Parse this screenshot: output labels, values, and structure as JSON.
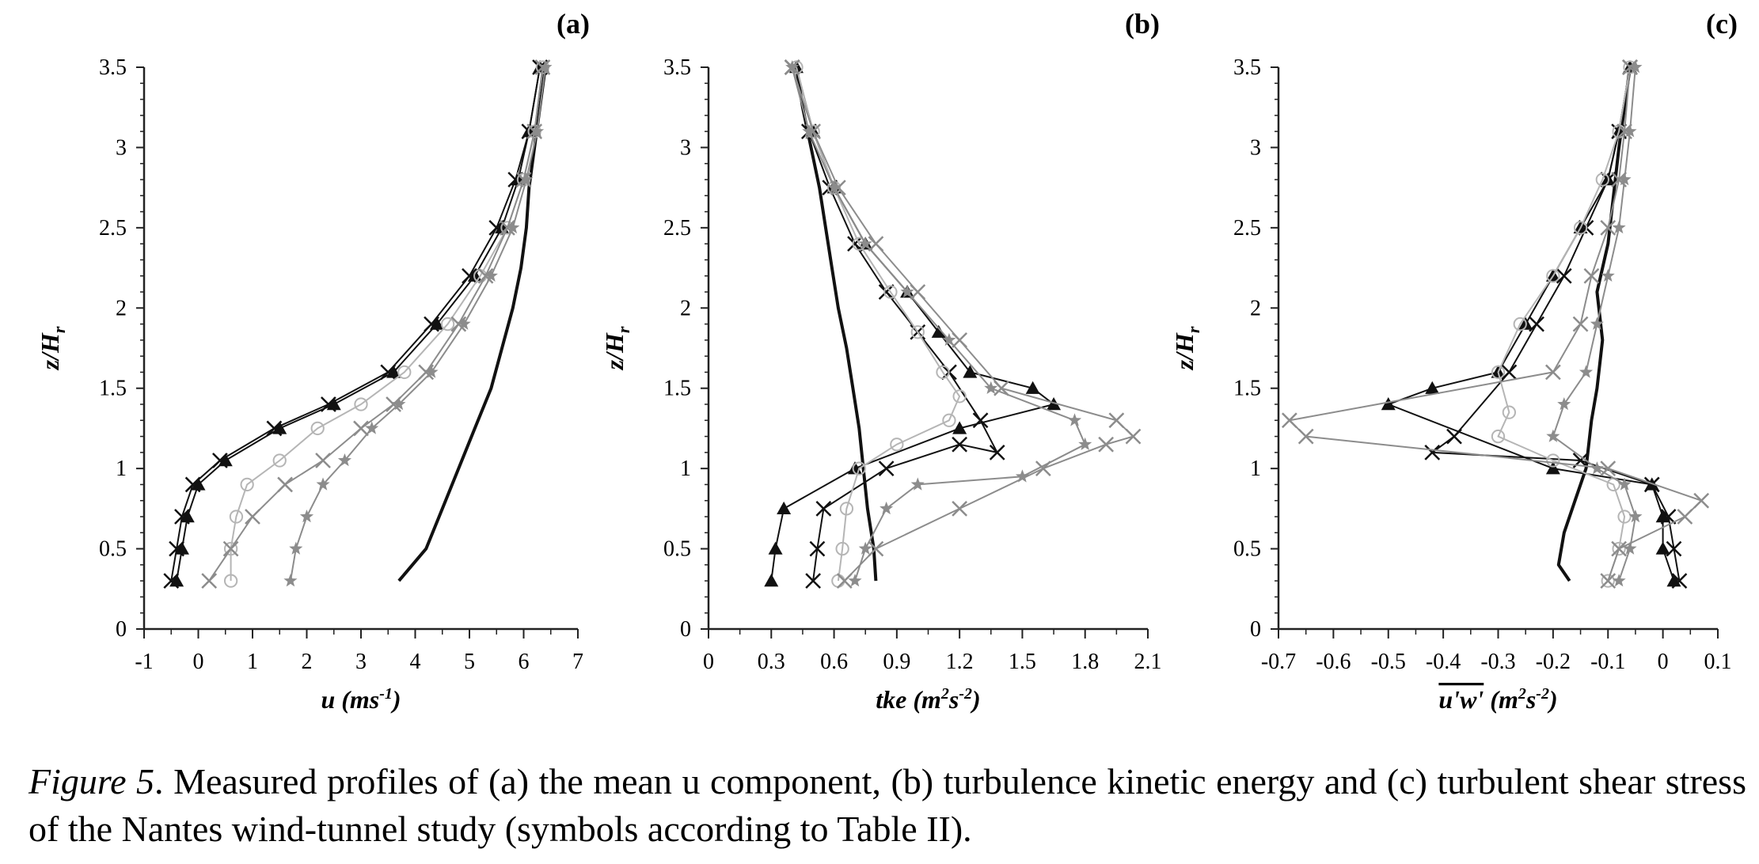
{
  "caption": {
    "label": "Figure 5",
    "text": ". Measured profiles of (a) the mean u component, (b) turbulence kinetic energy and (c) turbulent shear stress of the Nantes wind-tunnel study (symbols according to Table II)."
  },
  "colors": {
    "black": "#111111",
    "gray": "#8c8c8c",
    "lightgray": "#b5b5b5"
  },
  "chart_data": [
    {
      "type": "line",
      "panel_label": "(a)",
      "ylabel": "z/H",
      "ylabel_sub": "r",
      "xlabel": "u (ms",
      "xlabel_sup": "-1",
      "xlabel_end": ")",
      "xlim": [
        -1,
        7
      ],
      "ylim": [
        0,
        3.5
      ],
      "xticks": [
        "-1",
        "0",
        "1",
        "2",
        "3",
        "4",
        "5",
        "6",
        "7"
      ],
      "yticks": [
        "0",
        "0.5",
        "1",
        "1.5",
        "2",
        "2.5",
        "3",
        "3.5"
      ],
      "series": [
        {
          "style": "black",
          "marker": "none",
          "x": [
            3.7,
            4.2,
            4.5,
            4.8,
            5.1,
            5.4,
            5.6,
            5.8,
            5.95,
            6.05,
            6.1,
            6.2,
            6.3,
            6.4
          ],
          "y": [
            0.3,
            0.5,
            0.75,
            1.0,
            1.25,
            1.5,
            1.75,
            2.0,
            2.25,
            2.5,
            2.75,
            3.0,
            3.25,
            3.5
          ]
        },
        {
          "style": "black",
          "marker": "triangle",
          "x": [
            -0.4,
            -0.3,
            -0.2,
            0.0,
            0.5,
            1.5,
            2.5,
            3.6,
            4.4,
            5.1,
            5.6,
            5.9,
            6.1,
            6.3
          ],
          "y": [
            0.3,
            0.5,
            0.7,
            0.9,
            1.05,
            1.25,
            1.4,
            1.6,
            1.9,
            2.2,
            2.5,
            2.8,
            3.1,
            3.5
          ]
        },
        {
          "style": "black",
          "marker": "x",
          "x": [
            -0.5,
            -0.4,
            -0.3,
            -0.1,
            0.4,
            1.4,
            2.4,
            3.5,
            4.3,
            5.0,
            5.5,
            5.85,
            6.1,
            6.3
          ],
          "y": [
            0.3,
            0.5,
            0.7,
            0.9,
            1.05,
            1.25,
            1.4,
            1.6,
            1.9,
            2.2,
            2.5,
            2.8,
            3.1,
            3.5
          ]
        },
        {
          "style": "lightgray",
          "marker": "circle",
          "x": [
            0.6,
            0.6,
            0.7,
            0.9,
            1.5,
            2.2,
            3.0,
            3.8,
            4.6,
            5.2,
            5.7,
            6.0,
            6.2,
            6.35
          ],
          "y": [
            0.3,
            0.5,
            0.7,
            0.9,
            1.05,
            1.25,
            1.4,
            1.6,
            1.9,
            2.2,
            2.5,
            2.8,
            3.1,
            3.5
          ]
        },
        {
          "style": "gray",
          "marker": "x",
          "x": [
            0.2,
            0.6,
            1.0,
            1.6,
            2.3,
            3.0,
            3.6,
            4.2,
            4.8,
            5.3,
            5.7,
            6.0,
            6.2,
            6.35
          ],
          "y": [
            0.3,
            0.5,
            0.7,
            0.9,
            1.05,
            1.25,
            1.4,
            1.6,
            1.9,
            2.2,
            2.5,
            2.8,
            3.1,
            3.5
          ]
        },
        {
          "style": "gray",
          "marker": "star",
          "x": [
            1.7,
            1.8,
            2.0,
            2.3,
            2.7,
            3.2,
            3.7,
            4.3,
            4.9,
            5.4,
            5.8,
            6.05,
            6.25,
            6.4
          ],
          "y": [
            0.3,
            0.5,
            0.7,
            0.9,
            1.05,
            1.25,
            1.4,
            1.6,
            1.9,
            2.2,
            2.5,
            2.8,
            3.1,
            3.5
          ]
        }
      ]
    },
    {
      "type": "line",
      "panel_label": "(b)",
      "ylabel": "z/H",
      "ylabel_sub": "r",
      "xlabel": "tke (m",
      "xlabel_sup": "2",
      "xlabel_mid": "s",
      "xlabel_sup2": "-2",
      "xlabel_end": ")",
      "xlim": [
        0,
        2.1
      ],
      "ylim": [
        0,
        3.5
      ],
      "xticks": [
        "0",
        "0.3",
        "0.6",
        "0.9",
        "1.2",
        "1.5",
        "1.8",
        "2.1"
      ],
      "yticks": [
        "0",
        "0.5",
        "1",
        "1.5",
        "2",
        "2.5",
        "3",
        "3.5"
      ],
      "series": [
        {
          "style": "black",
          "marker": "none",
          "x": [
            0.8,
            0.79,
            0.76,
            0.74,
            0.72,
            0.69,
            0.66,
            0.62,
            0.59,
            0.56,
            0.53,
            0.49,
            0.45,
            0.42
          ],
          "y": [
            0.3,
            0.5,
            0.75,
            1.0,
            1.25,
            1.5,
            1.75,
            2.0,
            2.25,
            2.5,
            2.75,
            3.0,
            3.25,
            3.5
          ]
        },
        {
          "style": "black",
          "marker": "triangle",
          "x": [
            0.3,
            0.32,
            0.36,
            0.7,
            1.2,
            1.65,
            1.55,
            1.25,
            1.1,
            0.95,
            0.75,
            0.6,
            0.5,
            0.42
          ],
          "y": [
            0.3,
            0.5,
            0.75,
            1.0,
            1.25,
            1.4,
            1.5,
            1.6,
            1.85,
            2.1,
            2.4,
            2.75,
            3.1,
            3.5
          ]
        },
        {
          "style": "black",
          "marker": "x",
          "x": [
            0.5,
            0.52,
            0.55,
            0.85,
            1.2,
            1.38,
            1.3,
            1.15,
            1.0,
            0.85,
            0.7,
            0.58,
            0.48,
            0.4
          ],
          "y": [
            0.3,
            0.5,
            0.75,
            1.0,
            1.15,
            1.1,
            1.3,
            1.6,
            1.85,
            2.1,
            2.4,
            2.75,
            3.1,
            3.5
          ]
        },
        {
          "style": "lightgray",
          "marker": "circle",
          "x": [
            0.62,
            0.64,
            0.66,
            0.72,
            0.9,
            1.15,
            1.2,
            1.12,
            1.0,
            0.87,
            0.72,
            0.6,
            0.5,
            0.42
          ],
          "y": [
            0.3,
            0.5,
            0.75,
            1.0,
            1.15,
            1.3,
            1.45,
            1.6,
            1.85,
            2.1,
            2.4,
            2.75,
            3.1,
            3.5
          ]
        },
        {
          "style": "gray",
          "marker": "x",
          "x": [
            0.65,
            0.8,
            1.2,
            1.6,
            1.9,
            2.03,
            1.95,
            1.4,
            1.2,
            1.0,
            0.8,
            0.62,
            0.5,
            0.4
          ],
          "y": [
            0.3,
            0.5,
            0.75,
            1.0,
            1.15,
            1.2,
            1.3,
            1.5,
            1.8,
            2.1,
            2.4,
            2.75,
            3.1,
            3.5
          ]
        },
        {
          "style": "gray",
          "marker": "star",
          "x": [
            0.7,
            0.75,
            0.85,
            1.0,
            1.5,
            1.8,
            1.75,
            1.35,
            1.15,
            0.95,
            0.75,
            0.6,
            0.48,
            0.4
          ],
          "y": [
            0.3,
            0.5,
            0.75,
            0.9,
            0.95,
            1.15,
            1.3,
            1.5,
            1.8,
            2.1,
            2.4,
            2.75,
            3.1,
            3.5
          ]
        }
      ]
    },
    {
      "type": "line",
      "panel_label": "(c)",
      "ylabel": "z/H",
      "ylabel_sub": "r",
      "xlabel": "u'w'",
      "xlabel_end": " (m",
      "xlabel_sup": "2",
      "xlabel_mid": "s",
      "xlabel_sup2": "-2",
      "xlabel_close": ")",
      "xlim": [
        -0.7,
        0.1
      ],
      "ylim": [
        0,
        3.5
      ],
      "xticks": [
        "-0.7",
        "-0.6",
        "-0.5",
        "-0.4",
        "-0.3",
        "-0.2",
        "-0.1",
        "0",
        "0.1"
      ],
      "yticks": [
        "0",
        "0.5",
        "1",
        "1.5",
        "2",
        "2.5",
        "3",
        "3.5"
      ],
      "series": [
        {
          "style": "black",
          "marker": "none",
          "x": [
            -0.17,
            -0.19,
            -0.18,
            -0.16,
            -0.14,
            -0.13,
            -0.12,
            -0.11,
            -0.12,
            -0.1,
            -0.09,
            -0.08,
            -0.07,
            -0.06
          ],
          "y": [
            0.3,
            0.4,
            0.6,
            0.8,
            1.0,
            1.3,
            1.5,
            1.8,
            2.1,
            2.4,
            2.7,
            3.0,
            3.25,
            3.5
          ]
        },
        {
          "style": "black",
          "marker": "triangle",
          "x": [
            0.02,
            0.0,
            0.0,
            -0.02,
            -0.2,
            -0.5,
            -0.42,
            -0.3,
            -0.25,
            -0.2,
            -0.15,
            -0.1,
            -0.08,
            -0.06
          ],
          "y": [
            0.3,
            0.5,
            0.7,
            0.9,
            1.0,
            1.4,
            1.5,
            1.6,
            1.9,
            2.2,
            2.5,
            2.8,
            3.1,
            3.5
          ]
        },
        {
          "style": "black",
          "marker": "x",
          "x": [
            0.03,
            0.02,
            0.01,
            -0.02,
            -0.15,
            -0.42,
            -0.38,
            -0.28,
            -0.23,
            -0.18,
            -0.14,
            -0.1,
            -0.08,
            -0.06
          ],
          "y": [
            0.3,
            0.5,
            0.7,
            0.9,
            1.05,
            1.1,
            1.2,
            1.6,
            1.9,
            2.2,
            2.5,
            2.8,
            3.1,
            3.5
          ]
        },
        {
          "style": "lightgray",
          "marker": "circle",
          "x": [
            -0.1,
            -0.08,
            -0.07,
            -0.09,
            -0.2,
            -0.3,
            -0.28,
            -0.3,
            -0.26,
            -0.2,
            -0.15,
            -0.11,
            -0.08,
            -0.06
          ],
          "y": [
            0.3,
            0.5,
            0.7,
            0.9,
            1.05,
            1.2,
            1.35,
            1.6,
            1.9,
            2.2,
            2.5,
            2.8,
            3.1,
            3.5
          ]
        },
        {
          "style": "gray",
          "marker": "x",
          "x": [
            -0.1,
            -0.08,
            0.04,
            0.07,
            -0.1,
            -0.65,
            -0.68,
            -0.2,
            -0.15,
            -0.13,
            -0.1,
            -0.08,
            -0.07,
            -0.06
          ],
          "y": [
            0.3,
            0.5,
            0.7,
            0.8,
            1.0,
            1.2,
            1.3,
            1.6,
            1.9,
            2.2,
            2.5,
            2.8,
            3.1,
            3.5
          ]
        },
        {
          "style": "gray",
          "marker": "star",
          "x": [
            -0.08,
            -0.06,
            -0.05,
            -0.07,
            -0.12,
            -0.2,
            -0.18,
            -0.14,
            -0.12,
            -0.1,
            -0.08,
            -0.07,
            -0.06,
            -0.05
          ],
          "y": [
            0.3,
            0.5,
            0.7,
            0.9,
            1.0,
            1.2,
            1.4,
            1.6,
            1.9,
            2.2,
            2.5,
            2.8,
            3.1,
            3.5
          ]
        }
      ]
    }
  ]
}
